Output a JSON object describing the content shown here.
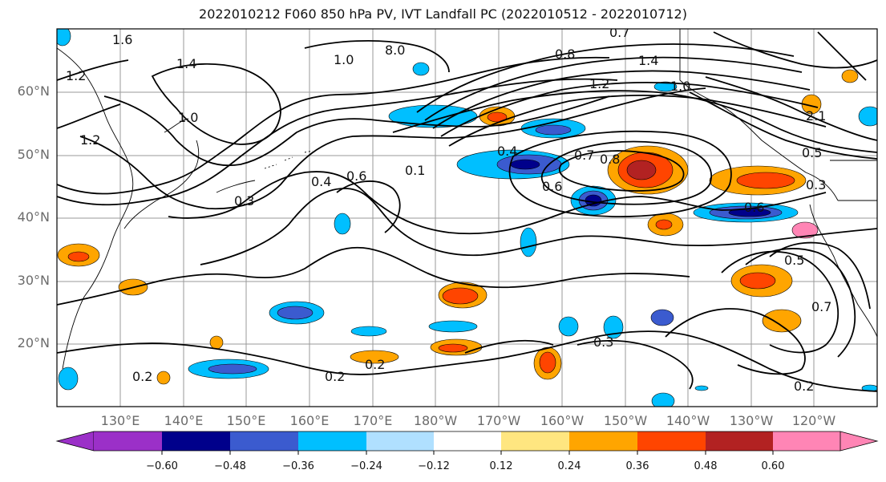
{
  "title": "2022010212 F060 850 hPa PV, IVT Landfall PC (2022010512 - 2022010712)",
  "lat_labels": [
    "60°N",
    "50°N",
    "40°N",
    "30°N",
    "20°N"
  ],
  "lon_labels": [
    "130°E",
    "140°E",
    "150°E",
    "160°E",
    "170°E",
    "180°W",
    "170°W",
    "160°W",
    "150°W",
    "140°W",
    "130°W",
    "120°W"
  ],
  "colorbar": {
    "ticks": [
      "−0.60",
      "−0.48",
      "−0.36",
      "−0.24",
      "−0.12",
      "0.12",
      "0.24",
      "0.36",
      "0.48",
      "0.60"
    ],
    "colors": [
      "#9b30c8",
      "#00008b",
      "#3b5bcf",
      "#00bfff",
      "#b0e0ff",
      "#ffffff",
      "#ffe680",
      "#ffa500",
      "#ff4500",
      "#b22222",
      "#ff85b5"
    ]
  },
  "contour_labels": [
    "0.2",
    "0.2",
    "0.2",
    "0.2",
    "0.3",
    "0.3",
    "0.3",
    "0.4",
    "0.4",
    "0.5",
    "0.5",
    "0.6",
    "0.6",
    "0.6",
    "0.7",
    "0.7",
    "0.7",
    "0.8",
    "0.8",
    "1.0",
    "1.0",
    "1.0",
    "1.2",
    "1.2",
    "1.2",
    "1.4",
    "1.4",
    "0.1",
    "1.6",
    "8.0",
    "2.1"
  ]
}
